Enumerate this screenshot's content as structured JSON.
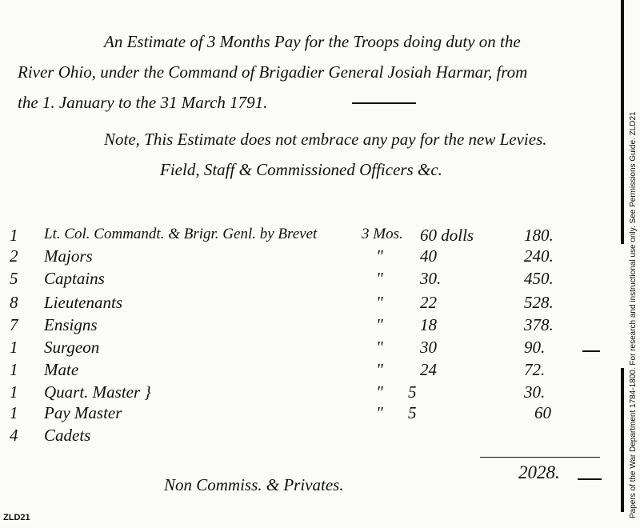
{
  "document": {
    "heading": [
      "An Estimate of 3 Months Pay for the Troops doing duty on the",
      "River Ohio, under the Command of Brigadier General Josiah Harmar, from",
      "the 1. January to the 31 March 1791."
    ],
    "note": [
      "Note, This Estimate does not embrace any pay for the new Levies.",
      "Field, Staff & Commissioned Officers &c."
    ],
    "rows": [
      {
        "qty": "1",
        "title": "Lt. Col. Commandt. & Brigr. Genl. by Brevet",
        "months": "3 Mos.",
        "ditto": "",
        "rate": "60 dolls",
        "total": "180."
      },
      {
        "qty": "2",
        "title": "Majors",
        "months": "",
        "ditto": "\"",
        "rate": "40",
        "total": "240."
      },
      {
        "qty": "5",
        "title": "Captains",
        "months": "",
        "ditto": "\"",
        "rate": "30.",
        "total": "450."
      },
      {
        "qty": "8",
        "title": "Lieutenants",
        "months": "",
        "ditto": "\"",
        "rate": "22",
        "total": "528."
      },
      {
        "qty": "7",
        "title": "Ensigns",
        "months": "",
        "ditto": "\"",
        "rate": "18",
        "total": "378."
      },
      {
        "qty": "1",
        "title": "Surgeon",
        "months": "",
        "ditto": "\"",
        "rate": "30",
        "total": "90."
      },
      {
        "qty": "1",
        "title": "Mate",
        "months": "",
        "ditto": "\"",
        "rate": "24",
        "total": "72."
      },
      {
        "qty": "1",
        "title": "Quart. Master }",
        "months": "",
        "ditto": "\"",
        "rate": "5",
        "total": "30."
      },
      {
        "qty": "1",
        "title": "Pay Master",
        "months": "",
        "ditto": "\"",
        "rate": "5",
        "total": "60"
      },
      {
        "qty": "4",
        "title": "Cadets",
        "months": "",
        "ditto": "",
        "rate": "",
        "total": ""
      }
    ],
    "sum_total": "2028.",
    "footer": "Non Commiss. & Privates."
  },
  "archive": {
    "side_notice": "Papers of the War Department 1784-1800.  For research and instructional use only.  See Permissions Guide.   ZLD21",
    "reference": "ZLD21"
  }
}
